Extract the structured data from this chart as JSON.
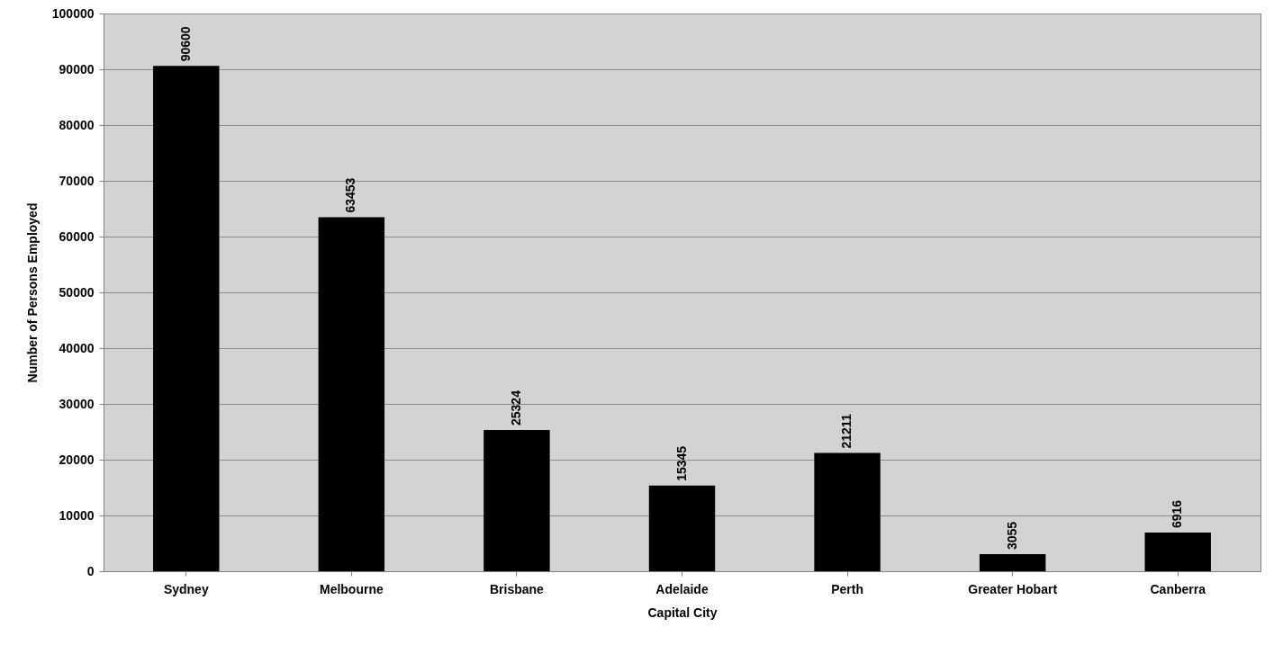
{
  "chart_data": {
    "type": "bar",
    "xlabel": "Capital City",
    "ylabel": "Number of Persons Employed",
    "categories": [
      "Sydney",
      "Melbourne",
      "Brisbane",
      "Adelaide",
      "Perth",
      "Greater Hobart",
      "Canberra"
    ],
    "values": [
      90600,
      63453,
      25324,
      15345,
      21211,
      3055,
      6916
    ],
    "color": "#000000",
    "ylim": [
      0,
      100000
    ],
    "yticks": [
      0,
      10000,
      20000,
      30000,
      40000,
      50000,
      60000,
      70000,
      80000,
      90000,
      100000
    ],
    "grid": "y",
    "data_labels": true
  }
}
